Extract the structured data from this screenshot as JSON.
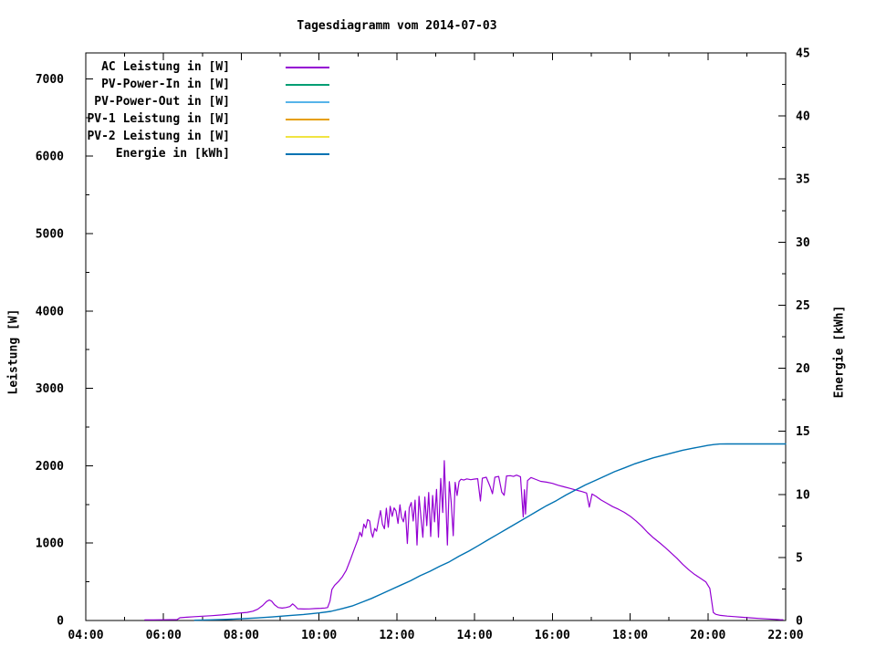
{
  "chart_data": {
    "type": "line",
    "title": "Tagesdiagramm vom 2014-07-03",
    "x_axis": {
      "label": "",
      "range": [
        4,
        22
      ],
      "major_ticks": [
        4,
        6,
        8,
        10,
        12,
        14,
        16,
        18,
        20,
        22
      ],
      "tick_labels": [
        "04:00",
        "06:00",
        "08:00",
        "10:00",
        "12:00",
        "14:00",
        "16:00",
        "18:00",
        "20:00",
        "22:00"
      ],
      "minor_ticks": [
        5,
        7,
        9,
        11,
        13,
        15,
        17,
        19,
        21
      ]
    },
    "y_left": {
      "label": "Leistung [W]",
      "range": [
        0,
        7335
      ],
      "major_ticks": [
        0,
        1000,
        2000,
        3000,
        4000,
        5000,
        6000,
        7000
      ],
      "tick_labels": [
        "0",
        "1000",
        "2000",
        "3000",
        "4000",
        "5000",
        "6000",
        "7000"
      ],
      "minor_ticks": [
        500,
        1500,
        2500,
        3500,
        4500,
        5500,
        6500
      ]
    },
    "y_right": {
      "label": "Energie [kWh]",
      "range": [
        0,
        45
      ],
      "major_ticks": [
        0,
        5,
        10,
        15,
        20,
        25,
        30,
        35,
        40,
        45
      ],
      "tick_labels": [
        "0",
        "5",
        "10",
        "15",
        "20",
        "25",
        "30",
        "35",
        "40",
        "45"
      ],
      "minor_ticks": [
        2.5,
        7.5,
        12.5,
        17.5,
        22.5,
        27.5,
        32.5,
        37.5,
        42.5
      ]
    },
    "grid": false,
    "legend_position": "top-left-inside",
    "series": [
      {
        "key": "ac",
        "name": "AC Leistung in [W]",
        "color": "#9400d3",
        "axis": "left",
        "points": [
          [
            5.52,
            8
          ],
          [
            5.75,
            8
          ],
          [
            6.0,
            10
          ],
          [
            6.35,
            12
          ],
          [
            6.42,
            35
          ],
          [
            6.6,
            42
          ],
          [
            6.8,
            50
          ],
          [
            7.0,
            55
          ],
          [
            7.25,
            62
          ],
          [
            7.5,
            72
          ],
          [
            7.75,
            85
          ],
          [
            7.95,
            95
          ],
          [
            8.15,
            105
          ],
          [
            8.3,
            120
          ],
          [
            8.42,
            145
          ],
          [
            8.55,
            195
          ],
          [
            8.65,
            245
          ],
          [
            8.72,
            265
          ],
          [
            8.78,
            250
          ],
          [
            8.85,
            205
          ],
          [
            8.95,
            168
          ],
          [
            9.05,
            160
          ],
          [
            9.15,
            168
          ],
          [
            9.25,
            180
          ],
          [
            9.32,
            215
          ],
          [
            9.38,
            190
          ],
          [
            9.45,
            152
          ],
          [
            9.6,
            148
          ],
          [
            9.75,
            150
          ],
          [
            9.9,
            155
          ],
          [
            10.05,
            158
          ],
          [
            10.15,
            162
          ],
          [
            10.22,
            168
          ],
          [
            10.28,
            250
          ],
          [
            10.33,
            400
          ],
          [
            10.4,
            455
          ],
          [
            10.5,
            505
          ],
          [
            10.6,
            565
          ],
          [
            10.7,
            650
          ],
          [
            10.8,
            780
          ],
          [
            10.9,
            915
          ],
          [
            11.0,
            1050
          ],
          [
            11.05,
            1140
          ],
          [
            11.1,
            1085
          ],
          [
            11.15,
            1245
          ],
          [
            11.2,
            1195
          ],
          [
            11.25,
            1305
          ],
          [
            11.3,
            1285
          ],
          [
            11.34,
            1145
          ],
          [
            11.38,
            1075
          ],
          [
            11.43,
            1190
          ],
          [
            11.48,
            1155
          ],
          [
            11.53,
            1295
          ],
          [
            11.58,
            1420
          ],
          [
            11.63,
            1245
          ],
          [
            11.68,
            1185
          ],
          [
            11.73,
            1450
          ],
          [
            11.78,
            1205
          ],
          [
            11.83,
            1475
          ],
          [
            11.88,
            1345
          ],
          [
            11.93,
            1455
          ],
          [
            11.98,
            1415
          ],
          [
            12.03,
            1255
          ],
          [
            12.08,
            1495
          ],
          [
            12.12,
            1335
          ],
          [
            12.17,
            1275
          ],
          [
            12.22,
            1415
          ],
          [
            12.27,
            995
          ],
          [
            12.32,
            1455
          ],
          [
            12.37,
            1525
          ],
          [
            12.42,
            1285
          ],
          [
            12.47,
            1555
          ],
          [
            12.52,
            975
          ],
          [
            12.57,
            1605
          ],
          [
            12.62,
            1335
          ],
          [
            12.67,
            1075
          ],
          [
            12.72,
            1595
          ],
          [
            12.77,
            1225
          ],
          [
            12.82,
            1655
          ],
          [
            12.87,
            1085
          ],
          [
            12.92,
            1615
          ],
          [
            12.97,
            1275
          ],
          [
            13.02,
            1695
          ],
          [
            13.07,
            1075
          ],
          [
            13.13,
            1835
          ],
          [
            13.18,
            1395
          ],
          [
            13.22,
            2065
          ],
          [
            13.26,
            1535
          ],
          [
            13.3,
            975
          ],
          [
            13.35,
            1795
          ],
          [
            13.4,
            1525
          ],
          [
            13.45,
            1095
          ],
          [
            13.5,
            1785
          ],
          [
            13.55,
            1615
          ],
          [
            13.6,
            1795
          ],
          [
            13.65,
            1825
          ],
          [
            13.72,
            1815
          ],
          [
            13.8,
            1830
          ],
          [
            13.9,
            1820
          ],
          [
            14.0,
            1828
          ],
          [
            14.08,
            1832
          ],
          [
            14.15,
            1545
          ],
          [
            14.2,
            1838
          ],
          [
            14.3,
            1852
          ],
          [
            14.4,
            1728
          ],
          [
            14.46,
            1638
          ],
          [
            14.52,
            1852
          ],
          [
            14.62,
            1862
          ],
          [
            14.7,
            1658
          ],
          [
            14.76,
            1618
          ],
          [
            14.82,
            1868
          ],
          [
            14.92,
            1872
          ],
          [
            15.0,
            1862
          ],
          [
            15.08,
            1878
          ],
          [
            15.18,
            1858
          ],
          [
            15.25,
            1338
          ],
          [
            15.28,
            1690
          ],
          [
            15.31,
            1375
          ],
          [
            15.36,
            1808
          ],
          [
            15.45,
            1848
          ],
          [
            15.55,
            1828
          ],
          [
            15.7,
            1798
          ],
          [
            15.85,
            1788
          ],
          [
            16.0,
            1772
          ],
          [
            16.15,
            1748
          ],
          [
            16.3,
            1728
          ],
          [
            16.45,
            1708
          ],
          [
            16.6,
            1688
          ],
          [
            16.75,
            1668
          ],
          [
            16.88,
            1648
          ],
          [
            16.95,
            1465
          ],
          [
            17.02,
            1635
          ],
          [
            17.12,
            1605
          ],
          [
            17.25,
            1558
          ],
          [
            17.4,
            1515
          ],
          [
            17.55,
            1472
          ],
          [
            17.7,
            1438
          ],
          [
            17.85,
            1398
          ],
          [
            18.0,
            1348
          ],
          [
            18.15,
            1288
          ],
          [
            18.3,
            1218
          ],
          [
            18.45,
            1138
          ],
          [
            18.6,
            1068
          ],
          [
            18.75,
            1008
          ],
          [
            18.9,
            945
          ],
          [
            19.05,
            875
          ],
          [
            19.2,
            805
          ],
          [
            19.35,
            728
          ],
          [
            19.5,
            658
          ],
          [
            19.65,
            598
          ],
          [
            19.8,
            548
          ],
          [
            19.95,
            498
          ],
          [
            20.05,
            415
          ],
          [
            20.1,
            245
          ],
          [
            20.14,
            105
          ],
          [
            20.2,
            80
          ],
          [
            20.32,
            66
          ],
          [
            20.5,
            57
          ],
          [
            20.7,
            49
          ],
          [
            20.9,
            41
          ],
          [
            21.1,
            34
          ],
          [
            21.3,
            27
          ],
          [
            21.5,
            21
          ],
          [
            21.7,
            15
          ],
          [
            21.85,
            11
          ],
          [
            21.93,
            9
          ]
        ]
      },
      {
        "key": "pv_in",
        "name": "PV-Power-In in [W]",
        "color": "#009e73",
        "axis": "left",
        "points": []
      },
      {
        "key": "pv_out",
        "name": "PV-Power-Out in [W]",
        "color": "#56b4e9",
        "axis": "left",
        "points": []
      },
      {
        "key": "pv1",
        "name": "PV-1 Leistung in [W]",
        "color": "#e69f00",
        "axis": "left",
        "points": []
      },
      {
        "key": "pv2",
        "name": "PV-2 Leistung in [W]",
        "color": "#f0e442",
        "axis": "left",
        "points": []
      },
      {
        "key": "energie",
        "name": "Energie in [kWh]",
        "color": "#0072b2",
        "axis": "right",
        "points": [
          [
            6.8,
            0.02
          ],
          [
            7.2,
            0.05
          ],
          [
            7.6,
            0.09
          ],
          [
            8.0,
            0.14
          ],
          [
            8.4,
            0.2
          ],
          [
            8.8,
            0.28
          ],
          [
            9.2,
            0.38
          ],
          [
            9.6,
            0.48
          ],
          [
            10.0,
            0.6
          ],
          [
            10.3,
            0.72
          ],
          [
            10.6,
            0.95
          ],
          [
            10.85,
            1.15
          ],
          [
            11.1,
            1.45
          ],
          [
            11.35,
            1.75
          ],
          [
            11.6,
            2.1
          ],
          [
            11.85,
            2.45
          ],
          [
            12.1,
            2.8
          ],
          [
            12.35,
            3.15
          ],
          [
            12.6,
            3.55
          ],
          [
            12.85,
            3.9
          ],
          [
            13.1,
            4.3
          ],
          [
            13.35,
            4.65
          ],
          [
            13.6,
            5.1
          ],
          [
            13.85,
            5.5
          ],
          [
            14.1,
            5.95
          ],
          [
            14.35,
            6.4
          ],
          [
            14.6,
            6.85
          ],
          [
            14.85,
            7.3
          ],
          [
            15.1,
            7.75
          ],
          [
            15.35,
            8.2
          ],
          [
            15.6,
            8.65
          ],
          [
            15.85,
            9.1
          ],
          [
            16.1,
            9.5
          ],
          [
            16.35,
            9.95
          ],
          [
            16.6,
            10.35
          ],
          [
            16.85,
            10.75
          ],
          [
            17.1,
            11.1
          ],
          [
            17.35,
            11.45
          ],
          [
            17.6,
            11.8
          ],
          [
            17.85,
            12.1
          ],
          [
            18.1,
            12.4
          ],
          [
            18.35,
            12.65
          ],
          [
            18.6,
            12.9
          ],
          [
            18.85,
            13.1
          ],
          [
            19.1,
            13.3
          ],
          [
            19.35,
            13.5
          ],
          [
            19.6,
            13.65
          ],
          [
            19.85,
            13.8
          ],
          [
            20.0,
            13.88
          ],
          [
            20.15,
            13.95
          ],
          [
            20.3,
            13.99
          ],
          [
            20.5,
            14.0
          ],
          [
            21.0,
            14.0
          ],
          [
            21.5,
            14.0
          ],
          [
            22.0,
            14.0
          ]
        ]
      }
    ]
  }
}
